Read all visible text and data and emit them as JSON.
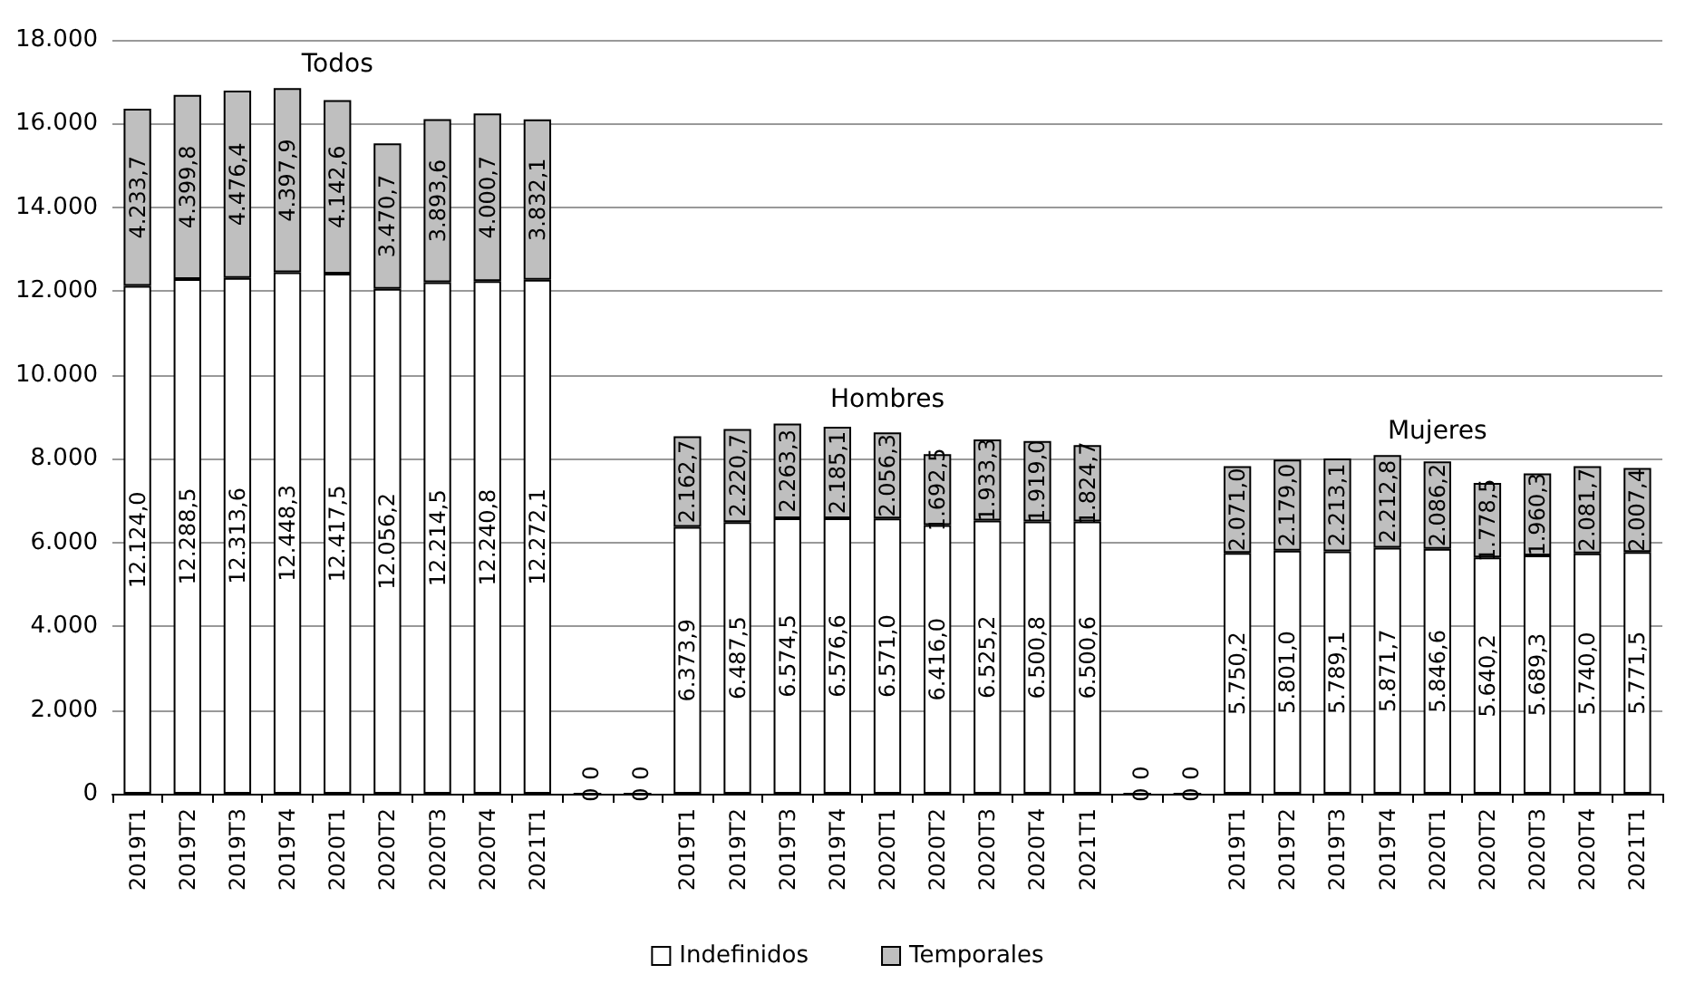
{
  "chart_data": {
    "type": "bar",
    "stacked": true,
    "categories": [
      "2019T1",
      "2019T2",
      "2019T3",
      "2019T4",
      "2020T1",
      "2020T2",
      "2020T3",
      "2020T4",
      "2021T1",
      null,
      null,
      "2019T1",
      "2019T2",
      "2019T3",
      "2019T4",
      "2020T1",
      "2020T2",
      "2020T3",
      "2020T4",
      "2021T1",
      null,
      null,
      "2019T1",
      "2019T2",
      "2019T3",
      "2019T4",
      "2020T1",
      "2020T2",
      "2020T3",
      "2020T4",
      "2021T1"
    ],
    "series": [
      {
        "name": "Indefinidos",
        "color": "#ffffff",
        "values": [
          12124.0,
          12288.5,
          12313.6,
          12448.3,
          12417.5,
          12056.2,
          12214.5,
          12240.8,
          12272.1,
          0,
          0,
          6373.9,
          6487.5,
          6574.5,
          6576.6,
          6571.0,
          6416.0,
          6525.2,
          6500.8,
          6500.6,
          0,
          0,
          5750.2,
          5801.0,
          5789.1,
          5871.7,
          5846.6,
          5640.2,
          5689.3,
          5740.0,
          5771.5
        ],
        "value_labels": [
          "12.124,0",
          "12.288,5",
          "12.313,6",
          "12.448,3",
          "12.417,5",
          "12.056,2",
          "12.214,5",
          "12.240,8",
          "12.272,1",
          "0",
          "0",
          "6.373,9",
          "6.487,5",
          "6.574,5",
          "6.576,6",
          "6.571,0",
          "6.416,0",
          "6.525,2",
          "6.500,8",
          "6.500,6",
          "0",
          "0",
          "5.750,2",
          "5.801,0",
          "5.789,1",
          "5.871,7",
          "5.846,6",
          "5.640,2",
          "5.689,3",
          "5.740,0",
          "5.771,5"
        ]
      },
      {
        "name": "Temporales",
        "color": "#bfbfbf",
        "values": [
          4233.7,
          4399.8,
          4476.4,
          4397.9,
          4142.6,
          3470.7,
          3893.6,
          4000.7,
          3832.1,
          0,
          0,
          2162.7,
          2220.7,
          2263.3,
          2185.1,
          2056.3,
          1692.5,
          1933.3,
          1919.0,
          1824.7,
          0,
          0,
          2071.0,
          2179.0,
          2213.1,
          2212.8,
          2086.2,
          1778.5,
          1960.3,
          2081.7,
          2007.4
        ],
        "value_labels": [
          "4.233,7",
          "4.399,8",
          "4.476,4",
          "4.397,9",
          "4.142,6",
          "3.470,7",
          "3.893,6",
          "4.000,7",
          "3.832,1",
          "0",
          "0",
          "2.162,7",
          "2.220,7",
          "2.263,3",
          "2.185,1",
          "2.056,3",
          "1.692,5",
          "1.933,3",
          "1.919,0",
          "1.824,7",
          "0",
          "0",
          "2.071,0",
          "2.179,0",
          "2.213,1",
          "2.212,8",
          "2.086,2",
          "1.778,5",
          "1.960,3",
          "2.081,7",
          "2.007,4"
        ]
      }
    ],
    "ylim": [
      0,
      18000
    ],
    "yticks": [
      {
        "value": 0,
        "label": "0"
      },
      {
        "value": 2000,
        "label": "2.000"
      },
      {
        "value": 4000,
        "label": "4.000"
      },
      {
        "value": 6000,
        "label": "6.000"
      },
      {
        "value": 8000,
        "label": "8.000"
      },
      {
        "value": 10000,
        "label": "10.000"
      },
      {
        "value": 12000,
        "label": "12.000"
      },
      {
        "value": 14000,
        "label": "14.000"
      },
      {
        "value": 16000,
        "label": "16.000"
      },
      {
        "value": 18000,
        "label": "18.000"
      }
    ],
    "annotations": [
      "Todos",
      "Hombres",
      "Mujeres"
    ],
    "grid": "y",
    "legend": "bottom"
  }
}
